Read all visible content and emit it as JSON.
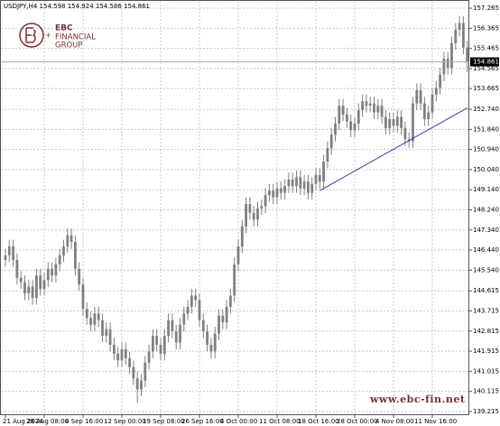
{
  "chart_data": {
    "type": "candlestick",
    "title": "USDJPY,H4 154.598 154.924 154.586 154.861",
    "categories": [
      "21 Aug 2024",
      null,
      null,
      null,
      null,
      null,
      null,
      null,
      null,
      null,
      "28 Aug 08:00",
      null,
      null,
      null,
      null,
      null,
      null,
      null,
      null,
      null,
      "4 Sep 16:00",
      null,
      null,
      null,
      null,
      null,
      null,
      null,
      null,
      null,
      "12 Sep 00:00",
      null,
      null,
      null,
      null,
      null,
      null,
      null,
      null,
      null,
      "19 Sep 08:00",
      null,
      null,
      null,
      null,
      null,
      null,
      null,
      null,
      null,
      "26 Sep 16:00",
      null,
      null,
      null,
      null,
      null,
      null,
      null,
      null,
      null,
      "4 Oct 00:00",
      null,
      null,
      null,
      null,
      null,
      null,
      null,
      null,
      null,
      "11 Oct 08:00",
      null,
      null,
      null,
      null,
      null,
      null,
      null,
      null,
      null,
      "18 Oct 16:00",
      null,
      null,
      null,
      null,
      null,
      null,
      null,
      null,
      null,
      "28 Oct 00:00",
      null,
      null,
      null,
      null,
      null,
      null,
      null,
      null,
      null,
      "4 Nov 08:00",
      null,
      null,
      null,
      null,
      null,
      null,
      null,
      null,
      null,
      "11 Nov 16:00",
      null,
      null,
      null,
      null,
      null,
      null,
      null,
      null,
      null
    ],
    "open": [
      146.0,
      146.2,
      146.6,
      146.0,
      145.2,
      145.0,
      144.5,
      144.8,
      144.3,
      145.3,
      144.7,
      145.1,
      145.6,
      145.3,
      145.8,
      146.2,
      146.6,
      147.1,
      146.8,
      145.6,
      144.9,
      143.8,
      143.4,
      143.1,
      143.6,
      143.3,
      142.6,
      142.9,
      142.2,
      141.8,
      141.5,
      142.0,
      141.6,
      141.2,
      140.7,
      140.2,
      140.6,
      141.4,
      141.9,
      142.6,
      142.2,
      141.8,
      142.6,
      143.3,
      142.8,
      142.3,
      143.1,
      143.6,
      143.9,
      144.4,
      144.2,
      143.3,
      142.8,
      142.2,
      141.9,
      142.7,
      143.5,
      143.2,
      143.9,
      144.4,
      145.8,
      146.6,
      147.5,
      148.5,
      148.1,
      147.8,
      148.3,
      148.4,
      148.9,
      149.1,
      148.8,
      149.2,
      149.0,
      149.3,
      149.6,
      149.3,
      149.7,
      149.2,
      149.5,
      149.0,
      149.4,
      149.8,
      149.5,
      150.4,
      151.0,
      151.6,
      152.1,
      152.9,
      152.5,
      152.2,
      151.8,
      152.1,
      152.7,
      153.1,
      152.9,
      153.0,
      152.6,
      152.9,
      152.4,
      151.9,
      152.3,
      152.0,
      152.4,
      151.9,
      151.4,
      151.3,
      153.0,
      153.6,
      153.0,
      152.3,
      152.6,
      153.4,
      153.7,
      154.3,
      155.0,
      154.6,
      155.7,
      156.3,
      156.6,
      155.5
    ],
    "high": [
      146.5,
      146.9,
      146.9,
      146.3,
      145.5,
      145.3,
      145.1,
      145.1,
      145.6,
      145.6,
      145.4,
      145.9,
      145.9,
      146.1,
      146.5,
      146.9,
      147.4,
      147.4,
      147.1,
      145.9,
      145.2,
      144.1,
      143.7,
      143.9,
      143.9,
      143.6,
      143.2,
      143.2,
      142.5,
      142.1,
      142.3,
      142.3,
      141.9,
      141.5,
      141.0,
      140.9,
      141.7,
      142.2,
      142.9,
      142.9,
      142.5,
      142.9,
      143.6,
      143.6,
      143.1,
      143.4,
      143.9,
      144.2,
      144.7,
      144.7,
      144.5,
      143.6,
      143.1,
      142.5,
      143.0,
      143.8,
      143.8,
      144.2,
      144.7,
      146.1,
      146.9,
      147.8,
      148.8,
      148.8,
      148.4,
      148.6,
      148.7,
      149.2,
      149.4,
      149.4,
      149.5,
      149.5,
      149.6,
      149.9,
      149.9,
      150.0,
      150.0,
      149.8,
      149.8,
      149.7,
      150.1,
      150.1,
      150.7,
      151.3,
      151.9,
      152.4,
      153.2,
      153.2,
      152.8,
      152.5,
      152.4,
      153.0,
      153.4,
      153.4,
      153.3,
      153.3,
      153.2,
      153.2,
      152.7,
      152.6,
      152.6,
      152.7,
      152.7,
      152.2,
      151.7,
      153.3,
      153.9,
      153.9,
      153.3,
      152.9,
      153.7,
      154.0,
      154.6,
      155.3,
      155.3,
      156.0,
      156.6,
      156.9,
      156.9,
      155.8
    ],
    "low": [
      145.7,
      145.9,
      145.7,
      144.9,
      144.7,
      144.2,
      144.2,
      144.0,
      144.0,
      144.4,
      144.4,
      144.8,
      145.0,
      145.0,
      145.5,
      145.9,
      146.3,
      146.5,
      145.3,
      144.6,
      143.5,
      143.1,
      142.8,
      142.8,
      143.0,
      142.3,
      142.3,
      141.9,
      141.5,
      141.2,
      141.2,
      141.3,
      140.9,
      140.4,
      139.6,
      139.9,
      140.3,
      141.1,
      141.6,
      141.9,
      141.5,
      141.5,
      142.3,
      142.5,
      142.0,
      142.0,
      142.8,
      143.3,
      143.6,
      143.9,
      143.0,
      142.5,
      141.9,
      141.6,
      141.6,
      142.4,
      142.9,
      142.9,
      143.6,
      144.1,
      145.5,
      146.3,
      147.2,
      147.8,
      147.5,
      147.5,
      148.0,
      148.1,
      148.6,
      148.5,
      148.5,
      148.7,
      148.7,
      149.0,
      149.0,
      149.0,
      148.9,
      148.9,
      148.7,
      148.7,
      149.1,
      149.2,
      149.2,
      150.1,
      150.7,
      151.3,
      151.8,
      152.2,
      151.9,
      151.5,
      151.5,
      151.8,
      152.4,
      152.6,
      152.6,
      152.3,
      152.3,
      152.1,
      151.6,
      151.6,
      151.7,
      151.7,
      151.6,
      151.1,
      151.0,
      151.0,
      152.7,
      152.7,
      152.0,
      152.0,
      152.3,
      153.1,
      153.4,
      154.0,
      154.3,
      154.3,
      155.4,
      156.0,
      155.2,
      154.4
    ],
    "close": [
      146.2,
      146.6,
      146.0,
      145.2,
      145.0,
      144.5,
      144.8,
      144.3,
      145.3,
      144.7,
      145.1,
      145.6,
      145.3,
      145.8,
      146.2,
      146.6,
      147.1,
      146.8,
      145.6,
      144.9,
      143.8,
      143.4,
      143.1,
      143.6,
      143.3,
      142.6,
      142.9,
      142.2,
      141.8,
      141.5,
      142.0,
      141.6,
      141.2,
      140.7,
      140.2,
      140.6,
      141.4,
      141.9,
      142.6,
      142.2,
      141.8,
      142.6,
      143.3,
      142.8,
      142.3,
      143.1,
      143.6,
      143.9,
      144.4,
      144.2,
      143.3,
      142.8,
      142.2,
      141.9,
      142.7,
      143.5,
      143.2,
      143.9,
      144.4,
      145.8,
      146.6,
      147.5,
      148.5,
      148.1,
      147.8,
      148.3,
      148.4,
      148.9,
      149.1,
      148.8,
      149.2,
      149.0,
      149.3,
      149.6,
      149.3,
      149.7,
      149.2,
      149.5,
      149.0,
      149.4,
      149.8,
      149.5,
      150.4,
      151.0,
      151.6,
      152.1,
      152.9,
      152.5,
      152.2,
      151.8,
      152.1,
      152.7,
      153.1,
      152.9,
      153.0,
      152.6,
      152.9,
      152.4,
      151.9,
      152.3,
      152.0,
      152.4,
      151.9,
      151.4,
      151.3,
      153.0,
      153.6,
      153.0,
      152.3,
      152.6,
      153.4,
      153.7,
      154.3,
      155.0,
      154.6,
      155.7,
      156.3,
      156.6,
      155.5,
      154.86
    ],
    "color": "#808080",
    "ylim": [
      139.05,
      157.59
    ],
    "yticks": [
      157.265,
      156.365,
      155.465,
      154.565,
      153.665,
      {
        "value": 152.74,
        "label": "152.740"
      },
      {
        "value": 151.84,
        "label": "151.840"
      },
      {
        "value": 150.94,
        "label": "150.940"
      },
      {
        "value": 150.04,
        "label": "150.040"
      },
      {
        "value": 149.14,
        "label": "149.140"
      },
      {
        "value": 148.24,
        "label": "148.240"
      },
      {
        "value": 147.34,
        "label": "147.340"
      },
      {
        "value": 146.44,
        "label": "146.440"
      },
      {
        "value": 145.54,
        "label": "145.540"
      },
      144.615,
      143.715,
      142.815,
      141.915,
      141.015,
      140.115,
      139.215
    ],
    "grid": true,
    "current_price": 154.861,
    "trendline": {
      "x": [
        81,
        119
      ],
      "y": [
        149.1,
        152.8
      ],
      "color": "#3a3aa8"
    },
    "watermark": "www.ebc-fin.net"
  },
  "logo": {
    "name": "EBC",
    "line1": "FINANCIAL",
    "line2": "GROUP"
  }
}
